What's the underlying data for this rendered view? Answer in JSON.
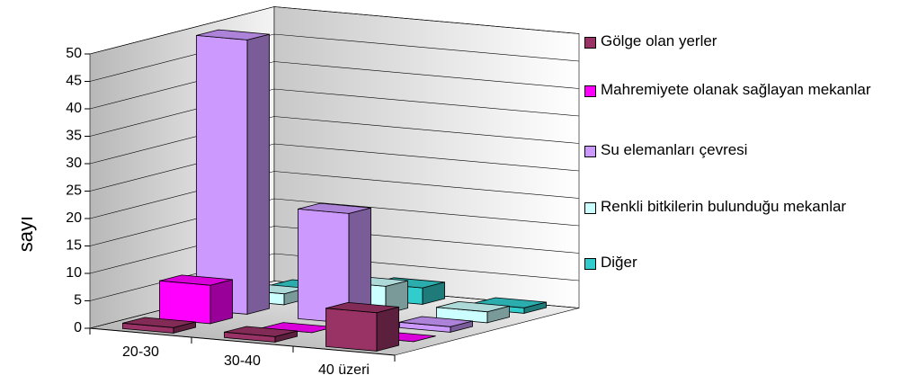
{
  "chart_data": {
    "type": "bar3d",
    "y_label": "sayı",
    "categories": [
      "20-30",
      "30-40",
      "40 üzeri"
    ],
    "series": [
      {
        "name": "Gölge olan yerler",
        "color": "#993366",
        "values": [
          1,
          1,
          7
        ]
      },
      {
        "name": "Mahremiyete  olanak sağlayan mekanlar",
        "color": "#ff00ff",
        "values": [
          7,
          0,
          0
        ]
      },
      {
        "name": "Su elemanları çevresi",
        "color": "#cc99ff",
        "values": [
          50,
          20,
          1
        ]
      },
      {
        "name": "Renkli bitkilerin bulunduğu mekanlar",
        "color": "#ccffff",
        "values": [
          2,
          5,
          2
        ]
      },
      {
        "name": "Diğer",
        "color": "#33cccc",
        "values": [
          1,
          3,
          1
        ]
      }
    ],
    "ylim": [
      0,
      50
    ],
    "yticks": [
      0,
      5,
      10,
      15,
      20,
      25,
      30,
      35,
      40,
      45,
      50
    ],
    "grid": true
  }
}
